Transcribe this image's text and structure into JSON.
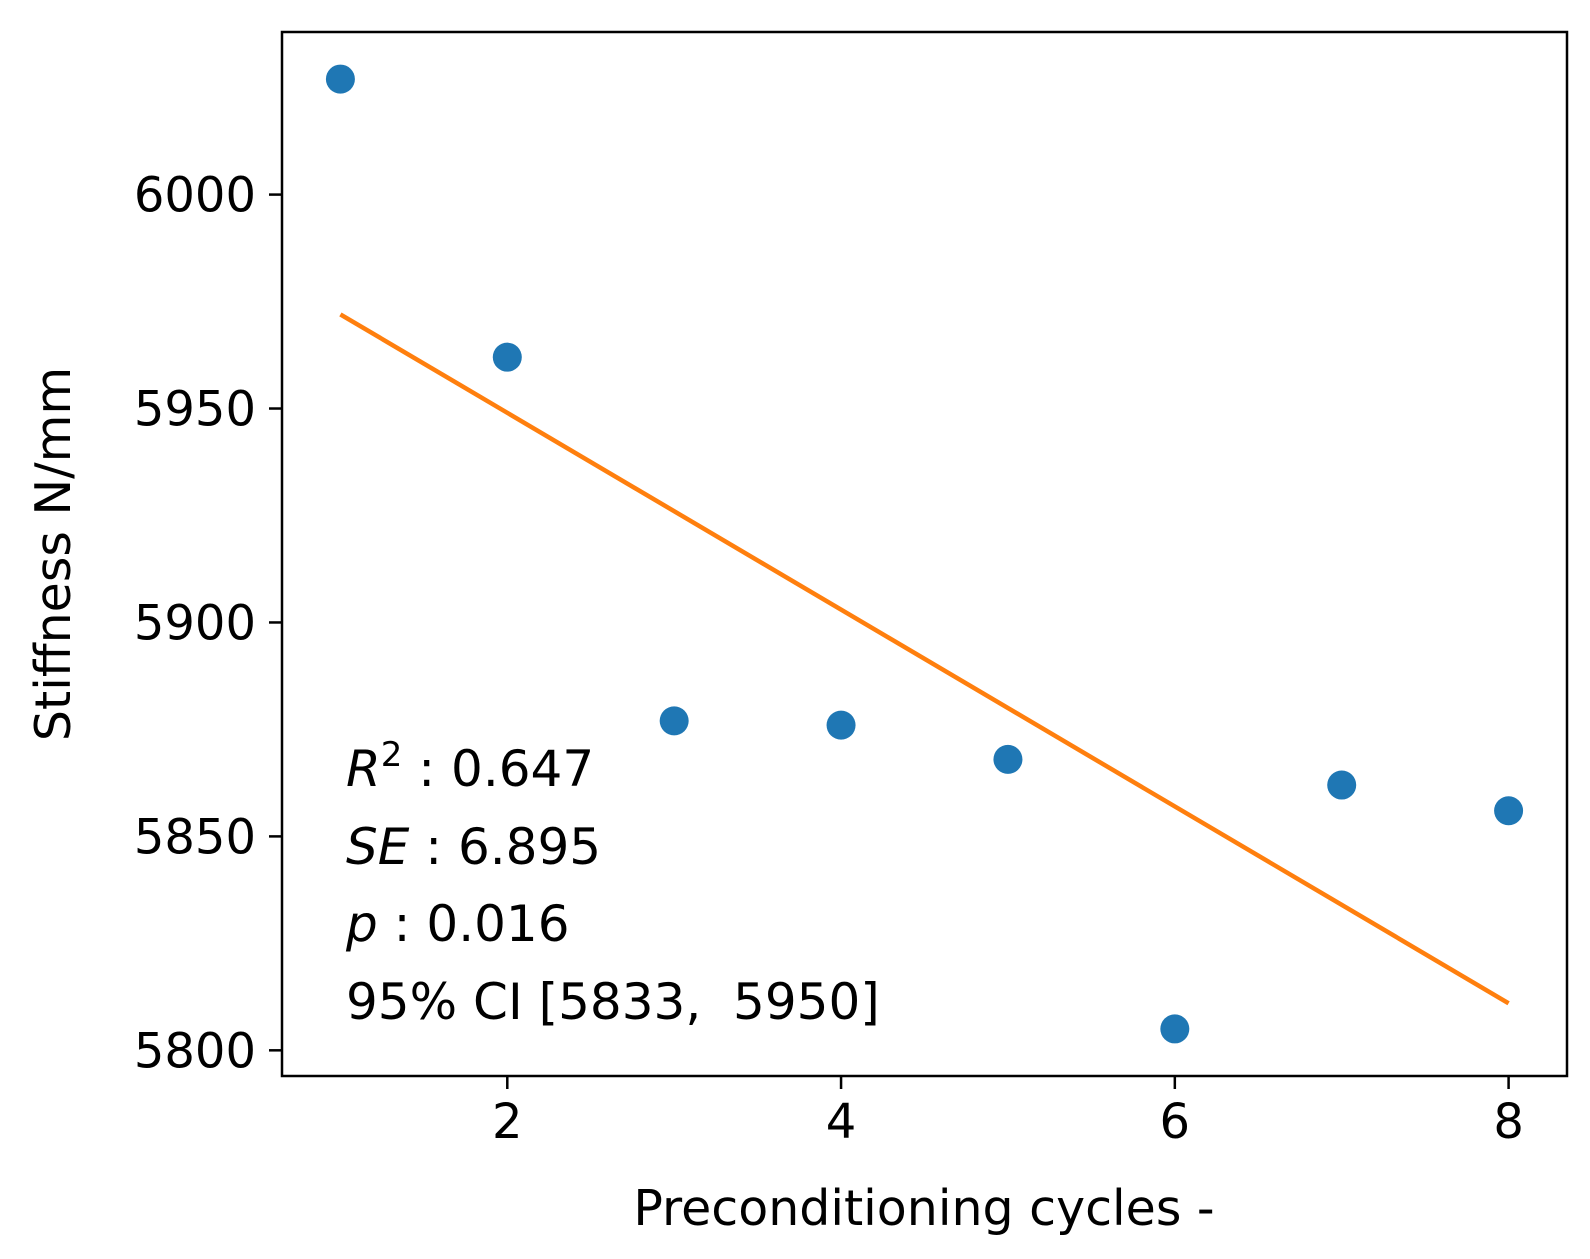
{
  "chart_data": {
    "type": "scatter",
    "xlabel": "Preconditioning cycles -",
    "ylabel": "Stiffness N/mm",
    "xlim": [
      0.65,
      8.35
    ],
    "ylim": [
      5794,
      6038
    ],
    "x_ticks": [
      2,
      4,
      6,
      8
    ],
    "y_ticks": [
      5800,
      5850,
      5900,
      5950,
      6000
    ],
    "grid": false,
    "series": [
      {
        "kind": "scatter",
        "color": "#1f77b4",
        "x": [
          1,
          2,
          3,
          4,
          5,
          6,
          7,
          8
        ],
        "y": [
          6027,
          5962,
          5877,
          5876,
          5868,
          5805,
          5862,
          5856
        ]
      },
      {
        "kind": "line",
        "color": "#ff7f0e",
        "x": [
          1,
          8
        ],
        "y": [
          5972,
          5811
        ]
      }
    ],
    "annotations": {
      "r2_symbol": "R",
      "r2_sup": "2",
      "r2_value": " : 0.647",
      "se_symbol": "SE",
      "se_value": " : 6.895",
      "p_symbol": "p",
      "p_value": " : 0.016",
      "ci_text": "95% CI [5833,  5950]"
    }
  }
}
